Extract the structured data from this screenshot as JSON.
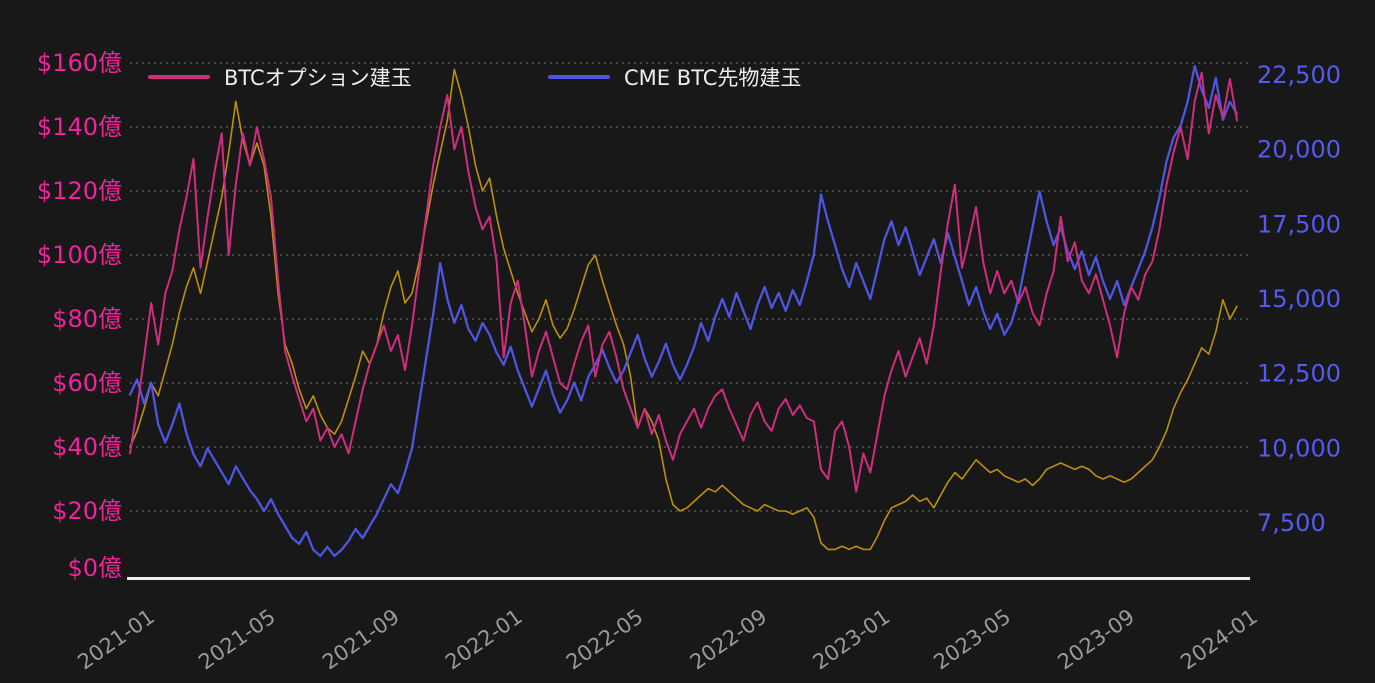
{
  "colors": {
    "background": "#181818",
    "axis_line": "#ececec",
    "gridline": "#cfcfcf"
  },
  "legend": {
    "text_color": "#ededed",
    "items": [
      {
        "label": "BTCオプション建玉",
        "color": "#cf2d7e"
      },
      {
        "label": "CME BTC先物建玉",
        "color": "#4e55e0"
      }
    ]
  },
  "left_axis": {
    "color": "#f0239c",
    "ticks": [
      {
        "label": "$160億",
        "value": 160
      },
      {
        "label": "$140億",
        "value": 140
      },
      {
        "label": "$120億",
        "value": 120
      },
      {
        "label": "$100億",
        "value": 100
      },
      {
        "label": "$80億",
        "value": 80
      },
      {
        "label": "$60億",
        "value": 60
      },
      {
        "label": "$40億",
        "value": 40
      },
      {
        "label": "$20億",
        "value": 20
      },
      {
        "label": "$0億",
        "value": 0
      }
    ]
  },
  "right_axis": {
    "color": "#545af2",
    "ticks": [
      {
        "label": "22,500",
        "value": 22500
      },
      {
        "label": "20,000",
        "value": 20000
      },
      {
        "label": "17,500",
        "value": 17500
      },
      {
        "label": "15,000",
        "value": 15000
      },
      {
        "label": "12,500",
        "value": 12500
      },
      {
        "label": "10,000",
        "value": 10000
      },
      {
        "label": "7,500",
        "value": 7500
      }
    ]
  },
  "x_axis": {
    "color": "#999999",
    "ticks": [
      {
        "label": "2021-01",
        "i": 1.71
      },
      {
        "label": "2021-05",
        "i": 18.86
      },
      {
        "label": "2021-09",
        "i": 36.43
      },
      {
        "label": "2022-01",
        "i": 53.86
      },
      {
        "label": "2022-05",
        "i": 71.0
      },
      {
        "label": "2022-09",
        "i": 88.57
      },
      {
        "label": "2023-01",
        "i": 106.0
      },
      {
        "label": "2023-05",
        "i": 123.14
      },
      {
        "label": "2023-09",
        "i": 140.71
      },
      {
        "label": "2024-01",
        "i": 158.14
      }
    ]
  },
  "chart_data": {
    "type": "line",
    "x_start": "2020-12-20",
    "x_step_days": 7,
    "x_index_max": 158.14,
    "left_ylim": [
      0,
      160
    ],
    "right_ylim": [
      5760,
      22900
    ],
    "grid": "horizontal-dashed",
    "legend_position": "top-left",
    "series": [
      {
        "name": "BTCオプション建玉",
        "axis": "left",
        "unit": "億USD",
        "color": "#cf2d7e",
        "values": [
          38,
          52,
          68,
          85,
          72,
          88,
          95,
          108,
          118,
          130,
          96,
          112,
          126,
          138,
          100,
          122,
          138,
          128,
          140,
          130,
          118,
          92,
          70,
          62,
          55,
          48,
          52,
          42,
          46,
          40,
          44,
          38,
          48,
          58,
          66,
          72,
          78,
          70,
          75,
          64,
          78,
          95,
          112,
          128,
          140,
          150,
          133,
          140,
          126,
          115,
          108,
          112,
          98,
          68,
          85,
          92,
          78,
          62,
          70,
          76,
          68,
          60,
          58,
          66,
          73,
          78,
          62,
          72,
          76,
          68,
          58,
          52,
          46,
          52,
          44,
          50,
          42,
          36,
          44,
          48,
          52,
          46,
          52,
          56,
          58,
          52,
          47,
          42,
          50,
          54,
          48,
          45,
          52,
          55,
          50,
          53,
          49,
          48,
          33,
          30,
          45,
          48,
          40,
          26,
          38,
          32,
          44,
          56,
          64,
          70,
          62,
          68,
          74,
          66,
          78,
          95,
          110,
          122,
          96,
          105,
          115,
          98,
          88,
          95,
          88,
          92,
          85,
          90,
          82,
          78,
          88,
          95,
          112,
          98,
          104,
          92,
          88,
          94,
          86,
          78,
          68,
          82,
          90,
          86,
          94,
          98,
          108,
          122,
          132,
          140,
          130,
          148,
          157,
          138,
          150,
          143,
          155,
          142
        ]
      },
      {
        "name": "CME BTC先物建玉",
        "axis": "right",
        "unit": "contracts",
        "color": "#4e55e0",
        "values": [
          11800,
          12300,
          11500,
          12200,
          10800,
          10200,
          10800,
          11500,
          10500,
          9800,
          9400,
          10000,
          9600,
          9200,
          8800,
          9400,
          9000,
          8600,
          8300,
          7900,
          8300,
          7800,
          7400,
          7000,
          6800,
          7200,
          6600,
          6400,
          6700,
          6400,
          6600,
          6900,
          7300,
          7000,
          7400,
          7800,
          8300,
          8800,
          8500,
          9200,
          10000,
          11500,
          13000,
          14500,
          16200,
          15000,
          14200,
          14800,
          14000,
          13600,
          14200,
          13800,
          13200,
          12800,
          13400,
          12600,
          12000,
          11400,
          12000,
          12600,
          11800,
          11200,
          11600,
          12200,
          11600,
          12400,
          12800,
          13300,
          12700,
          12200,
          12600,
          13200,
          13800,
          13000,
          12400,
          12900,
          13500,
          12800,
          12300,
          12800,
          13400,
          14200,
          13600,
          14400,
          15000,
          14400,
          15200,
          14600,
          14000,
          14800,
          15400,
          14700,
          15200,
          14600,
          15300,
          14800,
          15600,
          16500,
          18500,
          17600,
          16800,
          16000,
          15400,
          16200,
          15600,
          15000,
          16000,
          17000,
          17600,
          16800,
          17400,
          16600,
          15800,
          16400,
          17000,
          16200,
          17200,
          16400,
          15600,
          14800,
          15400,
          14600,
          14000,
          14500,
          13800,
          14200,
          15000,
          16200,
          17400,
          18600,
          17600,
          16800,
          17400,
          16600,
          16000,
          16600,
          15800,
          16400,
          15600,
          15000,
          15600,
          14800,
          15400,
          16000,
          16600,
          17400,
          18400,
          19600,
          20400,
          20800,
          21600,
          22800,
          22000,
          21400,
          22400,
          21000,
          21600,
          21200
        ]
      },
      {
        "name": "unlabeled-gold-series",
        "axis": "left",
        "unit": "億USD",
        "color": "#bd8e10",
        "values": [
          40,
          45,
          52,
          60,
          56,
          64,
          72,
          82,
          90,
          96,
          88,
          98,
          108,
          118,
          132,
          148,
          136,
          128,
          135,
          128,
          112,
          88,
          72,
          66,
          58,
          52,
          56,
          50,
          46,
          44,
          48,
          55,
          62,
          70,
          66,
          72,
          82,
          90,
          95,
          85,
          88,
          98,
          110,
          122,
          132,
          142,
          158,
          150,
          140,
          128,
          120,
          124,
          112,
          102,
          95,
          88,
          82,
          76,
          80,
          86,
          78,
          74,
          77,
          83,
          90,
          97,
          100,
          92,
          85,
          78,
          72,
          62,
          46,
          52,
          48,
          42,
          30,
          22,
          20,
          21,
          23,
          25,
          27,
          26,
          28,
          26,
          24,
          22,
          21,
          20,
          22,
          21,
          20,
          20,
          19,
          20,
          21,
          18,
          10,
          8,
          8,
          9,
          8,
          9,
          8,
          8,
          12,
          17,
          21,
          22,
          23,
          25,
          23,
          24,
          21,
          25,
          29,
          32,
          30,
          33,
          36,
          34,
          32,
          33,
          31,
          30,
          29,
          30,
          28,
          30,
          33,
          34,
          35,
          34,
          33,
          34,
          33,
          31,
          30,
          31,
          30,
          29,
          30,
          32,
          34,
          36,
          40,
          45,
          52,
          57,
          61,
          66,
          71,
          69,
          76,
          86,
          80,
          84
        ]
      }
    ]
  }
}
